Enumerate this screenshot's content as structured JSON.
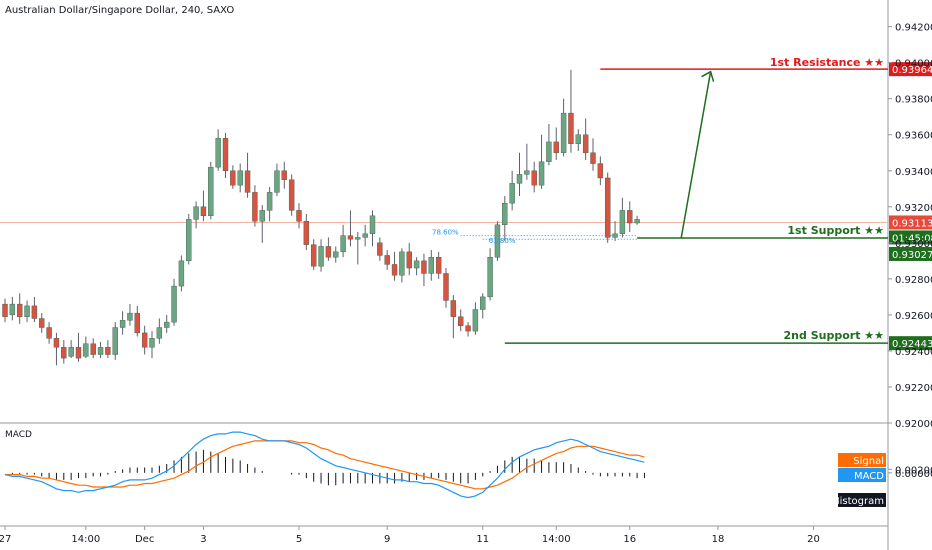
{
  "header": {
    "title": "Australian Dollar/Singapore Dollar, 240, SAXO"
  },
  "colors": {
    "up": "#6ba583",
    "down": "#d75442",
    "resistance": "#e01b1b",
    "support": "#1e6e1e",
    "macd": "#2196f3",
    "signal": "#ff6d00",
    "histogram": "#131722",
    "price_line": "#f4b6a4"
  },
  "chart_data": {
    "type": "candlestick",
    "title": "Australian Dollar/Singapore Dollar, 240, SAXO",
    "price_axis": {
      "ylim": [
        0.92,
        0.9432
      ],
      "ticks": [
        "0.94200",
        "0.94000",
        "0.93800",
        "0.93600",
        "0.93400",
        "0.93200",
        "0.93000",
        "0.92800",
        "0.92600",
        "0.92400",
        "0.92200",
        "0.92000"
      ]
    },
    "time_axis": {
      "labels": [
        {
          "text": "27",
          "i": 0
        },
        {
          "text": "14:00",
          "i": 11
        },
        {
          "text": "Dec",
          "i": 19
        },
        {
          "text": "3",
          "i": 27
        },
        {
          "text": "5",
          "i": 40
        },
        {
          "text": "9",
          "i": 52
        },
        {
          "text": "11",
          "i": 65
        },
        {
          "text": "14:00",
          "i": 75
        },
        {
          "text": "16",
          "i": 85
        },
        {
          "text": "18",
          "i": 97
        },
        {
          "text": "20",
          "i": 110
        }
      ],
      "slots": 118
    },
    "candles": [
      [
        0.9266,
        0.9259,
        0.9269,
        0.9256
      ],
      [
        0.926,
        0.9266,
        0.927,
        0.9257
      ],
      [
        0.9266,
        0.9259,
        0.9272,
        0.9255
      ],
      [
        0.9259,
        0.9265,
        0.9268,
        0.9256
      ],
      [
        0.9265,
        0.9258,
        0.927,
        0.9256
      ],
      [
        0.9258,
        0.9253,
        0.9261,
        0.925
      ],
      [
        0.9253,
        0.9247,
        0.9256,
        0.9244
      ],
      [
        0.9247,
        0.9242,
        0.925,
        0.9232
      ],
      [
        0.9242,
        0.9236,
        0.9246,
        0.9233
      ],
      [
        0.9237,
        0.9242,
        0.9246,
        0.9236
      ],
      [
        0.9242,
        0.9236,
        0.925,
        0.9234
      ],
      [
        0.9237,
        0.9244,
        0.9248,
        0.9236
      ],
      [
        0.9244,
        0.9238,
        0.9247,
        0.9236
      ],
      [
        0.9238,
        0.9242,
        0.9245,
        0.9236
      ],
      [
        0.9242,
        0.9238,
        0.9246,
        0.9236
      ],
      [
        0.9238,
        0.9253,
        0.9256,
        0.9235
      ],
      [
        0.9253,
        0.9257,
        0.9262,
        0.9249
      ],
      [
        0.9257,
        0.9261,
        0.9266,
        0.9254
      ],
      [
        0.9261,
        0.925,
        0.9265,
        0.9248
      ],
      [
        0.925,
        0.9242,
        0.9254,
        0.9238
      ],
      [
        0.9242,
        0.9247,
        0.9251,
        0.9236
      ],
      [
        0.9247,
        0.9253,
        0.9258,
        0.9244
      ],
      [
        0.9253,
        0.9256,
        0.926,
        0.925
      ],
      [
        0.9256,
        0.9276,
        0.928,
        0.9254
      ],
      [
        0.9276,
        0.929,
        0.9293,
        0.9273
      ],
      [
        0.929,
        0.9313,
        0.9316,
        0.9288
      ],
      [
        0.9313,
        0.932,
        0.9323,
        0.9308
      ],
      [
        0.932,
        0.9315,
        0.9329,
        0.9312
      ],
      [
        0.9315,
        0.9342,
        0.9345,
        0.9313
      ],
      [
        0.9342,
        0.9358,
        0.9363,
        0.934
      ],
      [
        0.9358,
        0.934,
        0.9361,
        0.9336
      ],
      [
        0.934,
        0.9332,
        0.9343,
        0.933
      ],
      [
        0.9332,
        0.934,
        0.9344,
        0.9328
      ],
      [
        0.934,
        0.9328,
        0.935,
        0.9325
      ],
      [
        0.9328,
        0.9312,
        0.9332,
        0.9309
      ],
      [
        0.9312,
        0.9318,
        0.9321,
        0.93
      ],
      [
        0.9318,
        0.9328,
        0.9331,
        0.9312
      ],
      [
        0.9328,
        0.934,
        0.9344,
        0.9326
      ],
      [
        0.934,
        0.9335,
        0.9345,
        0.933
      ],
      [
        0.9335,
        0.9318,
        0.9338,
        0.9315
      ],
      [
        0.9318,
        0.9312,
        0.9322,
        0.9308
      ],
      [
        0.9312,
        0.9299,
        0.9316,
        0.9296
      ],
      [
        0.9299,
        0.9287,
        0.9302,
        0.9285
      ],
      [
        0.9287,
        0.9298,
        0.9302,
        0.9284
      ],
      [
        0.9298,
        0.9292,
        0.9303,
        0.929
      ],
      [
        0.9292,
        0.9295,
        0.9298,
        0.9289
      ],
      [
        0.9295,
        0.9304,
        0.931,
        0.9292
      ],
      [
        0.9304,
        0.9302,
        0.9318,
        0.9298
      ],
      [
        0.9302,
        0.9303,
        0.9306,
        0.9288
      ],
      [
        0.9303,
        0.9305,
        0.931,
        0.9298
      ],
      [
        0.9305,
        0.9315,
        0.9318,
        0.9298
      ],
      [
        0.93,
        0.9293,
        0.9303,
        0.929
      ],
      [
        0.9293,
        0.9288,
        0.9296,
        0.9285
      ],
      [
        0.9288,
        0.9282,
        0.9295,
        0.9279
      ],
      [
        0.9282,
        0.9295,
        0.9297,
        0.9278
      ],
      [
        0.9295,
        0.9286,
        0.93,
        0.9282
      ],
      [
        0.9286,
        0.929,
        0.9292,
        0.9282
      ],
      [
        0.929,
        0.9283,
        0.9294,
        0.9276
      ],
      [
        0.9283,
        0.9292,
        0.9296,
        0.9279
      ],
      [
        0.9292,
        0.9283,
        0.9295,
        0.928
      ],
      [
        0.9283,
        0.9268,
        0.9286,
        0.9264
      ],
      [
        0.9268,
        0.9259,
        0.9271,
        0.9247
      ],
      [
        0.9259,
        0.9254,
        0.9263,
        0.9251
      ],
      [
        0.9254,
        0.9251,
        0.9256,
        0.9248
      ],
      [
        0.9251,
        0.9263,
        0.9267,
        0.9249
      ],
      [
        0.9263,
        0.927,
        0.9272,
        0.9258
      ],
      [
        0.927,
        0.9292,
        0.9297,
        0.9268
      ],
      [
        0.9292,
        0.931,
        0.9312,
        0.929
      ],
      [
        0.931,
        0.9322,
        0.9326,
        0.9301
      ],
      [
        0.9322,
        0.9333,
        0.934,
        0.9318
      ],
      [
        0.9333,
        0.9338,
        0.935,
        0.9326
      ],
      [
        0.9338,
        0.934,
        0.9355,
        0.9335
      ],
      [
        0.934,
        0.9332,
        0.9345,
        0.9328
      ],
      [
        0.9332,
        0.9345,
        0.936,
        0.933
      ],
      [
        0.9345,
        0.9356,
        0.9366,
        0.9343
      ],
      [
        0.9356,
        0.935,
        0.9364,
        0.9346
      ],
      [
        0.935,
        0.9372,
        0.938,
        0.9348
      ],
      [
        0.9372,
        0.9355,
        0.9396,
        0.935
      ],
      [
        0.9355,
        0.936,
        0.9363,
        0.9351
      ],
      [
        0.936,
        0.935,
        0.9369,
        0.9346
      ],
      [
        0.935,
        0.9344,
        0.9358,
        0.934
      ],
      [
        0.9344,
        0.9336,
        0.9348,
        0.9332
      ],
      [
        0.9336,
        0.9303,
        0.9339,
        0.93
      ],
      [
        0.9303,
        0.9305,
        0.9312,
        0.9301
      ],
      [
        0.9305,
        0.9318,
        0.9325,
        0.9303
      ],
      [
        0.9318,
        0.9311,
        0.9323,
        0.9306
      ],
      [
        0.9311,
        0.9313,
        0.9315,
        0.931
      ]
    ],
    "macd": {
      "ylim": [
        -0.0003,
        0.00027
      ],
      "ticks": [
        "0.00200",
        "0.00000"
      ],
      "macd_line": [
        -1e-05,
        -2e-05,
        -2e-05,
        -3e-05,
        -4e-05,
        -5e-05,
        -7e-05,
        -9e-05,
        -0.0001,
        -0.0001,
        -0.00011,
        -0.0001,
        -0.0001,
        -9e-05,
        -8e-05,
        -7e-05,
        -5e-05,
        -4e-05,
        -4e-05,
        -4e-05,
        -3e-05,
        -1e-05,
        1e-05,
        4e-05,
        8e-05,
        0.00012,
        0.00016,
        0.00019,
        0.00021,
        0.00022,
        0.00022,
        0.00023,
        0.00023,
        0.00022,
        0.00021,
        0.00019,
        0.00018,
        0.00018,
        0.00018,
        0.00017,
        0.00016,
        0.00014,
        0.00011,
        8e-05,
        6e-05,
        4e-05,
        3e-05,
        2e-05,
        1e-05,
        0.0,
        -1e-05,
        -2e-05,
        -3e-05,
        -4e-05,
        -4e-05,
        -5e-05,
        -5e-05,
        -6e-05,
        -6e-05,
        -7e-05,
        -9e-05,
        -0.00011,
        -0.00013,
        -0.00014,
        -0.00013,
        -0.00011,
        -7e-05,
        -3e-05,
        2e-05,
        6e-05,
        9e-05,
        0.00011,
        0.00013,
        0.00014,
        0.00015,
        0.00017,
        0.00018,
        0.00019,
        0.00018,
        0.00016,
        0.00014,
        0.00012,
        0.00011,
        0.0001,
        9e-05,
        8e-05,
        7e-05,
        6e-05
      ],
      "signal_line": [
        -1e-05,
        -1e-05,
        -1e-05,
        -2e-05,
        -2e-05,
        -3e-05,
        -3e-05,
        -4e-05,
        -5e-05,
        -6e-05,
        -7e-05,
        -7e-05,
        -8e-05,
        -8e-05,
        -8e-05,
        -8e-05,
        -8e-05,
        -7e-05,
        -7e-05,
        -6e-05,
        -6e-05,
        -5e-05,
        -4e-05,
        -3e-05,
        -1e-05,
        1e-05,
        4e-05,
        6e-05,
        9e-05,
        0.00011,
        0.00013,
        0.00015,
        0.00016,
        0.00017,
        0.00018,
        0.00018,
        0.00018,
        0.00018,
        0.00018,
        0.00018,
        0.00017,
        0.00017,
        0.00016,
        0.00014,
        0.00013,
        0.00011,
        0.0001,
        8e-05,
        7e-05,
        6e-05,
        5e-05,
        4e-05,
        3e-05,
        2e-05,
        1e-05,
        0.0,
        -1e-05,
        -2e-05,
        -3e-05,
        -4e-05,
        -5e-05,
        -6e-05,
        -7e-05,
        -8e-05,
        -9e-05,
        -9e-05,
        -8e-05,
        -7e-05,
        -5e-05,
        -3e-05,
        0.0,
        3e-05,
        5e-05,
        7e-05,
        9e-05,
        0.00011,
        0.00012,
        0.00014,
        0.00015,
        0.00015,
        0.00015,
        0.00014,
        0.00013,
        0.00012,
        0.00011,
        0.0001,
        0.0001,
        9e-05
      ],
      "histogram": [
        0.0,
        -1e-05,
        -1e-05,
        -1e-05,
        -1e-05,
        -2e-05,
        -3e-05,
        -4e-05,
        -4e-05,
        -4e-05,
        -3e-05,
        -3e-05,
        -2e-05,
        -2e-05,
        -1e-05,
        1e-05,
        2e-05,
        3e-05,
        3e-05,
        3e-05,
        3e-05,
        4e-05,
        5e-05,
        7e-05,
        9e-05,
        0.00011,
        0.00012,
        0.00013,
        0.00012,
        0.00011,
        9e-05,
        8e-05,
        7e-05,
        5e-05,
        3e-05,
        1e-05,
        0.0,
        0.0,
        0.0,
        -1e-05,
        -1e-05,
        -3e-05,
        -5e-05,
        -6e-05,
        -7e-05,
        -7e-05,
        -6e-05,
        -6e-05,
        -6e-05,
        -6e-05,
        -6e-05,
        -6e-05,
        -6e-05,
        -6e-05,
        -5e-05,
        -5e-05,
        -4e-05,
        -4e-05,
        -3e-05,
        -3e-05,
        -4e-05,
        -5e-05,
        -6e-05,
        -6e-05,
        -4e-05,
        -2e-05,
        1e-05,
        4e-05,
        7e-05,
        9e-05,
        9e-05,
        8e-05,
        8e-05,
        7e-05,
        6e-05,
        6e-05,
        6e-05,
        5e-05,
        3e-05,
        1e-05,
        -1e-05,
        -2e-05,
        -2e-05,
        -2e-05,
        -2e-05,
        -2e-05,
        -3e-05,
        -3e-05
      ]
    },
    "levels": {
      "resistance": {
        "label": "1st Resistance ★★",
        "price": 0.93964,
        "value_text": "0.93964"
      },
      "support1": {
        "label": "1st Support ★★",
        "price": 0.93027,
        "value_text": "0.93027"
      },
      "support2": {
        "label": "2nd Support ★★",
        "price": 0.92443,
        "value_text": "0.92443"
      },
      "current": {
        "price": 0.93113,
        "value_text": "0.93113",
        "countdown": "01:45:08"
      }
    },
    "fib": {
      "label_a": "78.60%",
      "label_b": "61.80%",
      "level_a": 0.9304,
      "level_b": 0.9302
    },
    "macd_legend": {
      "signal": "Signal",
      "macd": "MACD",
      "histogram": "Histogram"
    }
  }
}
